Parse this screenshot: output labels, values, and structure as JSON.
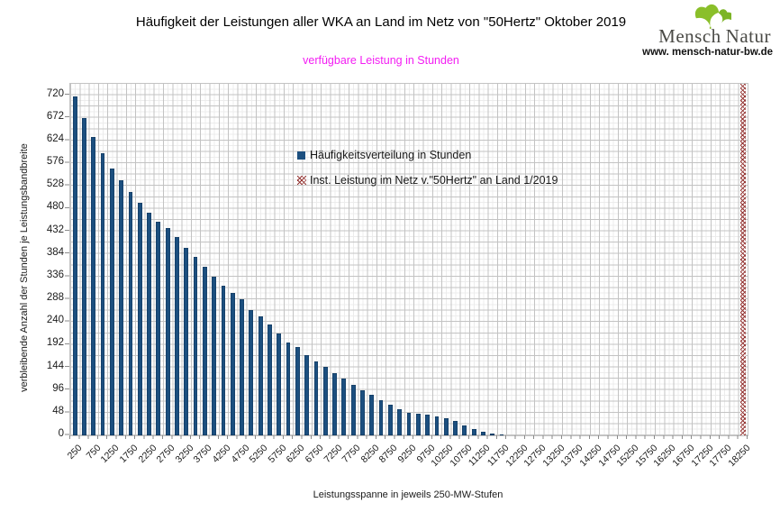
{
  "header": {
    "title": "Häufigkeit der Leistungen aller WKA an Land im Netz von \"50Hertz\" Oktober 2019",
    "subtitle": "verfügbare Leistung in Stunden"
  },
  "logo": {
    "brand_left": "Mensch",
    "brand_right": "Natur",
    "url": "www. mensch-natur-bw.de",
    "leaf_icon": "ginkgo-leaf",
    "leaf_color": "#8abf2a",
    "text_color": "#4a4a46"
  },
  "legend": {
    "items": [
      {
        "label": "Häufigkeitsverteilung in Stunden",
        "marker": "filled-square",
        "color": "#1c4f7f"
      },
      {
        "label": "Inst. Leistung im Netz v.\"50Hertz\" an Land 1/2019",
        "marker": "x-hatch-square",
        "color": "#953735"
      }
    ]
  },
  "chart_data": {
    "type": "bar",
    "title": "Häufigkeit der Leistungen aller WKA an Land im Netz von \"50Hertz\" Oktober 2019",
    "subtitle": "verfügbare Leistung in Stunden",
    "xlabel": "Leistungsspanne in jeweils 250-MW-Stufen",
    "ylabel": "verbleibende Anzahl der Stunden je Leistungsbandbreite",
    "ylim": [
      0,
      744
    ],
    "yticks": [
      0,
      48,
      96,
      144,
      192,
      240,
      288,
      336,
      384,
      432,
      480,
      528,
      576,
      624,
      672,
      720
    ],
    "grid": {
      "major_y_step": 24,
      "minor_y_step": 12,
      "x_step_mw": 250,
      "color": "#c3c3c3"
    },
    "legend_position": "inside-upper-middle",
    "categories": [
      250,
      500,
      750,
      1000,
      1250,
      1500,
      1750,
      2000,
      2250,
      2500,
      2750,
      3000,
      3250,
      3500,
      3750,
      4000,
      4250,
      4500,
      4750,
      5000,
      5250,
      5500,
      5750,
      6000,
      6250,
      6500,
      6750,
      7000,
      7250,
      7500,
      7750,
      8000,
      8250,
      8500,
      8750,
      9000,
      9250,
      9500,
      9750,
      10000,
      10250,
      10500,
      10750,
      11000,
      11250,
      11500,
      11750,
      12000,
      12250,
      12500,
      12750,
      13000,
      13250,
      13500,
      13750,
      14000,
      14250,
      14500,
      14750,
      15000,
      15250,
      15500,
      15750,
      16000,
      16250,
      16500,
      16750,
      17000,
      17250,
      17500,
      17750,
      18000,
      18250
    ],
    "x_tick_labels": [
      "250",
      "750",
      "1250",
      "1750",
      "2250",
      "2750",
      "3250",
      "3750",
      "4250",
      "4750",
      "5250",
      "5750",
      "6250",
      "6750",
      "7250",
      "7750",
      "8250",
      "8750",
      "9250",
      "9750",
      "10250",
      "10750",
      "11250",
      "11750",
      "12250",
      "12750",
      "13250",
      "13750",
      "14250",
      "14750",
      "15250",
      "15750",
      "16250",
      "16750",
      "17250",
      "17750",
      "18250"
    ],
    "series": [
      {
        "name": "Häufigkeitsverteilung in Stunden",
        "type": "bar",
        "color": "#1c4f7f",
        "values": [
          718,
          672,
          631,
          597,
          564,
          539,
          515,
          492,
          471,
          452,
          438,
          420,
          396,
          377,
          356,
          335,
          317,
          302,
          288,
          266,
          251,
          234,
          215,
          196,
          187,
          170,
          157,
          145,
          132,
          121,
          107,
          96,
          85,
          75,
          64,
          55,
          48,
          45,
          44,
          40,
          36,
          30,
          21,
          13,
          8,
          4,
          2,
          0,
          0,
          0,
          0,
          0,
          0,
          0,
          0,
          0,
          0,
          0,
          0,
          0,
          0,
          0,
          0,
          0,
          0,
          0,
          0,
          0,
          0,
          0,
          0,
          0,
          0
        ]
      },
      {
        "name": "Inst. Leistung im Netz v.\"50Hertz\" an Land 1/2019",
        "type": "full-height-hatched-bar",
        "x": 18250,
        "color": "#953735"
      }
    ]
  },
  "colors": {
    "bar_blue": "#1c4f7f",
    "hatch_red": "#953735",
    "subtitle_magenta": "#f31df3",
    "grid": "#c3c3c3",
    "axis_text": "#1a1a1a"
  }
}
